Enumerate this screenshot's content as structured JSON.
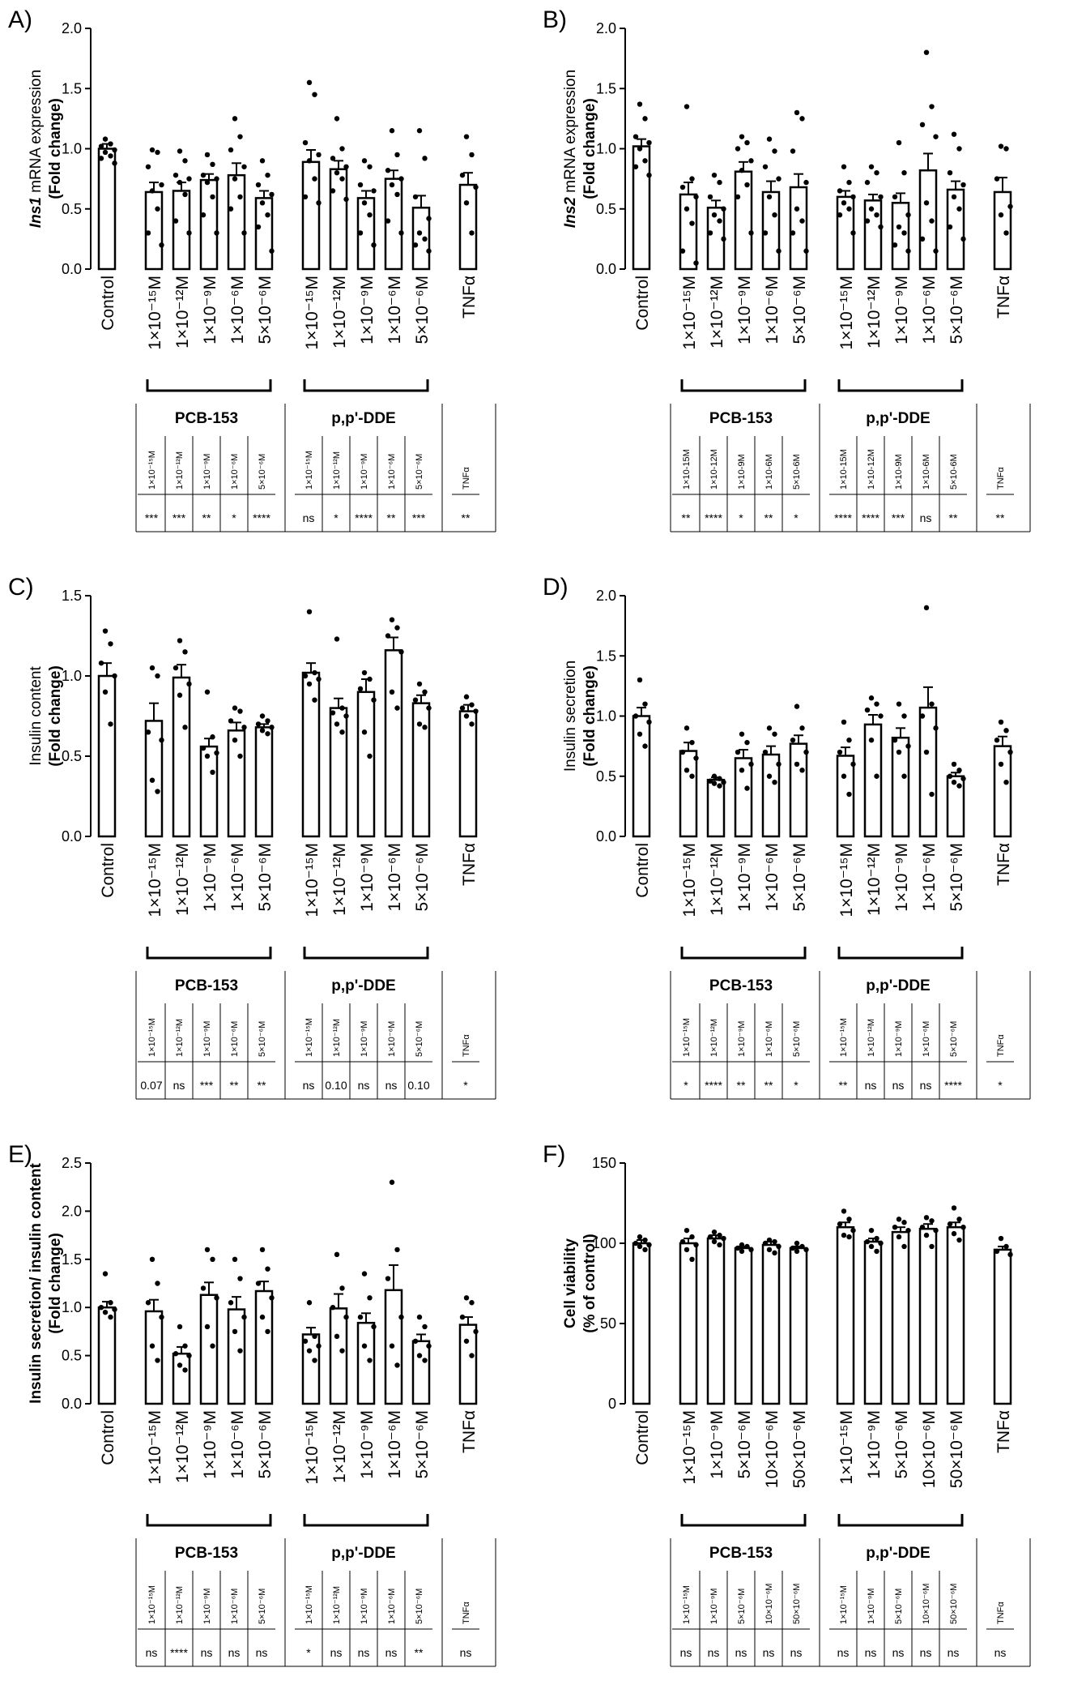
{
  "chart_data": [
    {
      "letter": "A)",
      "type": "bar",
      "ylabel_italic": "Ins1",
      "ylabel_rest": " mRNA expression",
      "ylabel2": "(Fold change)",
      "ylim": [
        0,
        2.0
      ],
      "yticks": [
        "0.0",
        "0.5",
        "1.0",
        "1.5",
        "2.0"
      ],
      "control_label": "Control",
      "treatment_labels": [
        "1×10⁻¹⁵M",
        "1×10⁻¹²M",
        "1×10⁻⁹M",
        "1×10⁻⁶M",
        "5×10⁻⁶M"
      ],
      "tnf_label": "TNFα",
      "groups": [
        "PCB-153",
        "p,p'-DDE"
      ],
      "values": [
        1.0,
        0.64,
        0.65,
        0.74,
        0.78,
        0.59,
        0.89,
        0.83,
        0.59,
        0.75,
        0.51,
        0.7
      ],
      "errors": [
        0.04,
        0.08,
        0.07,
        0.05,
        0.1,
        0.06,
        0.1,
        0.07,
        0.06,
        0.07,
        0.1,
        0.1
      ],
      "points": [
        [
          1.08,
          1.04,
          1.02,
          0.99,
          0.97,
          0.94,
          0.92,
          0.88
        ],
        [
          0.99,
          0.97,
          0.85,
          0.7,
          0.65,
          0.5,
          0.3,
          0.2
        ],
        [
          0.98,
          0.9,
          0.78,
          0.75,
          0.72,
          0.62,
          0.4,
          0.3
        ],
        [
          0.95,
          0.87,
          0.78,
          0.75,
          0.72,
          0.6,
          0.45,
          0.3
        ],
        [
          1.25,
          1.1,
          0.99,
          0.85,
          0.75,
          0.6,
          0.5,
          0.3
        ],
        [
          0.9,
          0.78,
          0.7,
          0.62,
          0.55,
          0.45,
          0.35,
          0.15
        ],
        [
          1.55,
          1.45,
          1.05,
          0.95,
          0.9,
          0.75,
          0.6,
          0.55
        ],
        [
          1.25,
          1.0,
          0.92,
          0.85,
          0.8,
          0.75,
          0.65,
          0.58
        ],
        [
          0.9,
          0.85,
          0.7,
          0.65,
          0.55,
          0.45,
          0.3,
          0.2
        ],
        [
          1.15,
          0.95,
          0.82,
          0.75,
          0.7,
          0.62,
          0.4,
          0.3
        ],
        [
          1.15,
          0.92,
          0.6,
          0.42,
          0.3,
          0.25,
          0.2,
          0.15
        ],
        [
          1.1,
          0.95,
          0.78,
          0.68,
          0.55,
          0.3
        ]
      ],
      "table": {
        "headers": [
          "1×10⁻¹⁵M",
          "1×10⁻¹²M",
          "1×10⁻⁹M",
          "1×10⁻⁶M",
          "5×10⁻⁶M",
          "1×10⁻¹⁵M",
          "1×10⁻¹²M",
          "1×10⁻⁹M",
          "1×10⁻⁶M",
          "5×10⁻⁶M",
          "TNFα"
        ],
        "sig": [
          "***",
          "***",
          "**",
          "*",
          "****",
          "ns",
          "*",
          "****",
          "**",
          "***",
          "**"
        ]
      }
    },
    {
      "letter": "B)",
      "type": "bar",
      "ylabel_italic": "Ins2",
      "ylabel_rest": " mRNA expression",
      "ylabel2": "(Fold change)",
      "ylim": [
        0,
        2.0
      ],
      "yticks": [
        "0.0",
        "0.5",
        "1.0",
        "1.5",
        "2.0"
      ],
      "control_label": "Control",
      "treatment_labels": [
        "1×10⁻¹⁵M",
        "1×10⁻¹²M",
        "1×10⁻⁹M",
        "1×10⁻⁶M",
        "5×10⁻⁶M"
      ],
      "tnf_label": "TNFα",
      "groups": [
        "PCB-153",
        "p,p'-DDE"
      ],
      "values": [
        1.02,
        0.62,
        0.51,
        0.81,
        0.64,
        0.68,
        0.6,
        0.57,
        0.55,
        0.82,
        0.66,
        0.64
      ],
      "errors": [
        0.06,
        0.1,
        0.06,
        0.08,
        0.09,
        0.11,
        0.05,
        0.05,
        0.08,
        0.14,
        0.07,
        0.12
      ],
      "points": [
        [
          1.37,
          1.25,
          1.1,
          1.05,
          1.0,
          0.9,
          0.85,
          0.78
        ],
        [
          1.35,
          0.75,
          0.68,
          0.6,
          0.5,
          0.38,
          0.15,
          0.05
        ],
        [
          0.78,
          0.72,
          0.6,
          0.5,
          0.45,
          0.4,
          0.3,
          0.25
        ],
        [
          1.1,
          1.05,
          1.0,
          0.9,
          0.82,
          0.7,
          0.6,
          0.3
        ],
        [
          1.08,
          0.98,
          0.85,
          0.75,
          0.6,
          0.45,
          0.3,
          0.15
        ],
        [
          1.3,
          1.25,
          0.98,
          0.72,
          0.5,
          0.4,
          0.3,
          0.15
        ],
        [
          0.85,
          0.72,
          0.65,
          0.6,
          0.55,
          0.5,
          0.45,
          0.3
        ],
        [
          0.85,
          0.8,
          0.72,
          0.6,
          0.5,
          0.45,
          0.4,
          0.35
        ],
        [
          1.05,
          0.8,
          0.6,
          0.45,
          0.35,
          0.3,
          0.2,
          0.15
        ],
        [
          1.8,
          1.35,
          1.2,
          1.1,
          0.55,
          0.4,
          0.25,
          0.15
        ],
        [
          1.12,
          1.0,
          0.8,
          0.7,
          0.6,
          0.5,
          0.35,
          0.25
        ],
        [
          1.02,
          1.0,
          0.75,
          0.52,
          0.45,
          0.3
        ]
      ],
      "table": {
        "headers": [
          "1×10-15M",
          "1×10-12M",
          "1×10-9M",
          "1×10-6M",
          "5×10-6M",
          "1×10-15M",
          "1×10-12M",
          "1×10-9M",
          "1×10-6M",
          "5×10-6M",
          "TNFα"
        ],
        "sig": [
          "**",
          "****",
          "*",
          "**",
          "*",
          "****",
          "****",
          "***",
          "ns",
          "**",
          "**"
        ]
      }
    },
    {
      "letter": "C)",
      "type": "bar",
      "ylabel_italic": "",
      "ylabel_rest": "Insulin content",
      "ylabel2": "(Fold change)",
      "ylim": [
        0,
        1.5
      ],
      "yticks": [
        "0.0",
        "0.5",
        "1.0",
        "1.5"
      ],
      "control_label": "Control",
      "treatment_labels": [
        "1×10⁻¹⁵M",
        "1×10⁻¹²M",
        "1×10⁻⁹M",
        "1×10⁻⁶M",
        "5×10⁻⁶M"
      ],
      "tnf_label": "TNFα",
      "groups": [
        "PCB-153",
        "p,p'-DDE"
      ],
      "values": [
        1.0,
        0.72,
        0.99,
        0.56,
        0.66,
        0.68,
        1.02,
        0.8,
        0.9,
        1.16,
        0.83,
        0.78
      ],
      "errors": [
        0.08,
        0.11,
        0.08,
        0.05,
        0.05,
        0.02,
        0.06,
        0.06,
        0.08,
        0.08,
        0.05,
        0.04
      ],
      "points": [
        [
          1.28,
          1.2,
          1.08,
          1.0,
          0.9,
          0.7
        ],
        [
          1.05,
          1.0,
          0.65,
          0.6,
          0.35,
          0.28
        ],
        [
          1.22,
          1.15,
          1.05,
          0.95,
          0.88,
          0.68
        ],
        [
          0.9,
          0.62,
          0.55,
          0.52,
          0.5,
          0.4
        ],
        [
          0.8,
          0.78,
          0.72,
          0.68,
          0.6,
          0.5
        ],
        [
          0.75,
          0.72,
          0.7,
          0.68,
          0.66,
          0.64
        ],
        [
          1.4,
          1.02,
          1.0,
          0.98,
          0.95,
          0.85
        ],
        [
          1.23,
          0.8,
          0.77,
          0.75,
          0.7,
          0.65
        ],
        [
          1.02,
          0.98,
          0.92,
          0.85,
          0.65,
          0.5
        ],
        [
          1.35,
          1.3,
          1.25,
          1.15,
          0.9,
          0.8
        ],
        [
          0.95,
          0.9,
          0.85,
          0.8,
          0.7,
          0.68
        ],
        [
          0.87,
          0.82,
          0.8,
          0.78,
          0.75,
          0.7
        ]
      ],
      "table": {
        "headers": [
          "1×10⁻¹⁵M",
          "1×10⁻¹²M",
          "1×10⁻⁹M",
          "1×10⁻⁶M",
          "5×10⁻⁶M",
          "1×10⁻¹⁵M",
          "1×10⁻¹²M",
          "1×10⁻⁹M",
          "1×10⁻⁶M",
          "5×10⁻⁶M",
          "TNFα"
        ],
        "sig": [
          "0.07",
          "ns",
          "***",
          "**",
          "**",
          "ns",
          "0.10",
          "ns",
          "ns",
          "0.10",
          "*"
        ]
      }
    },
    {
      "letter": "D)",
      "type": "bar",
      "ylabel_italic": "",
      "ylabel_rest": "Insulin secretion",
      "ylabel2": "(Fold change)",
      "ylim": [
        0,
        2.0
      ],
      "yticks": [
        "0.0",
        "0.5",
        "1.0",
        "1.5",
        "2.0"
      ],
      "control_label": "Control",
      "treatment_labels": [
        "1×10⁻¹⁵M",
        "1×10⁻¹²M",
        "1×10⁻⁹M",
        "1×10⁻⁶M",
        "5×10⁻⁶M"
      ],
      "tnf_label": "TNFα",
      "groups": [
        "PCB-153",
        "p,p'-DDE"
      ],
      "values": [
        1.0,
        0.71,
        0.47,
        0.65,
        0.68,
        0.77,
        0.67,
        0.93,
        0.82,
        1.07,
        0.5,
        0.75
      ],
      "errors": [
        0.07,
        0.07,
        0.02,
        0.07,
        0.07,
        0.07,
        0.07,
        0.08,
        0.08,
        0.17,
        0.03,
        0.08
      ],
      "points": [
        [
          1.3,
          1.1,
          1.0,
          0.95,
          0.85,
          0.75
        ],
        [
          0.9,
          0.78,
          0.7,
          0.65,
          0.55,
          0.5
        ],
        [
          0.5,
          0.48,
          0.46,
          0.45,
          0.44,
          0.42
        ],
        [
          0.85,
          0.78,
          0.7,
          0.6,
          0.55,
          0.4
        ],
        [
          0.9,
          0.85,
          0.7,
          0.6,
          0.5,
          0.45
        ],
        [
          1.08,
          0.9,
          0.8,
          0.7,
          0.6,
          0.55
        ],
        [
          0.95,
          0.8,
          0.7,
          0.6,
          0.5,
          0.35
        ],
        [
          1.15,
          1.1,
          1.05,
          1.0,
          0.8,
          0.5
        ],
        [
          1.1,
          1.0,
          0.8,
          0.75,
          0.7,
          0.5
        ],
        [
          1.9,
          1.1,
          1.0,
          0.9,
          0.7,
          0.35
        ],
        [
          0.6,
          0.55,
          0.5,
          0.48,
          0.45,
          0.42
        ],
        [
          0.95,
          0.88,
          0.8,
          0.7,
          0.6,
          0.45
        ]
      ],
      "table": {
        "headers": [
          "1×10⁻¹⁵M",
          "1×10⁻¹²M",
          "1×10⁻⁹M",
          "1×10⁻⁶M",
          "5×10⁻⁶M",
          "1×10⁻¹⁵M",
          "1×10⁻¹²M",
          "1×10⁻⁹M",
          "1×10⁻⁶M",
          "5×10⁻⁶M",
          "TNFα"
        ],
        "sig": [
          "*",
          "****",
          "**",
          "**",
          "*",
          "**",
          "ns",
          "ns",
          "ns",
          "****",
          "*"
        ]
      }
    },
    {
      "letter": "E)",
      "type": "bar",
      "ylabel_italic": "",
      "ylabel_rest": "Insulin secretion/ insulin content",
      "ylabel2": "(Fold change)",
      "ylim": [
        0,
        2.5
      ],
      "yticks": [
        "0.0",
        "0.5",
        "1.0",
        "1.5",
        "2.0",
        "2.5"
      ],
      "control_label": "Control",
      "treatment_labels": [
        "1×10⁻¹⁵M",
        "1×10⁻¹²M",
        "1×10⁻⁹M",
        "1×10⁻⁶M",
        "5×10⁻⁶M"
      ],
      "tnf_label": "TNFα",
      "groups": [
        "PCB-153",
        "p,p'-DDE"
      ],
      "values": [
        1.0,
        0.96,
        0.52,
        1.13,
        0.98,
        1.17,
        0.72,
        0.99,
        0.84,
        1.18,
        0.65,
        0.82
      ],
      "errors": [
        0.06,
        0.12,
        0.07,
        0.13,
        0.13,
        0.1,
        0.07,
        0.15,
        0.1,
        0.26,
        0.07,
        0.08
      ],
      "points": [
        [
          1.35,
          1.05,
          1.0,
          0.98,
          0.95,
          0.9
        ],
        [
          1.5,
          1.25,
          1.05,
          0.9,
          0.6,
          0.45
        ],
        [
          0.8,
          0.6,
          0.52,
          0.5,
          0.4,
          0.35
        ],
        [
          1.6,
          1.5,
          1.2,
          1.1,
          0.8,
          0.6
        ],
        [
          1.5,
          1.3,
          1.05,
          0.9,
          0.75,
          0.55
        ],
        [
          1.6,
          1.4,
          1.25,
          1.1,
          0.9,
          0.75
        ],
        [
          1.05,
          0.7,
          0.65,
          0.6,
          0.55,
          0.45
        ],
        [
          1.55,
          1.2,
          1.0,
          0.9,
          0.7,
          0.55
        ],
        [
          1.35,
          1.1,
          0.9,
          0.8,
          0.6,
          0.45
        ],
        [
          2.3,
          1.6,
          1.3,
          0.9,
          0.6,
          0.4
        ],
        [
          0.9,
          0.8,
          0.65,
          0.6,
          0.5,
          0.45
        ],
        [
          1.1,
          1.05,
          0.9,
          0.75,
          0.65,
          0.5
        ]
      ],
      "table": {
        "headers": [
          "1×10⁻¹⁵M",
          "1×10⁻¹²M",
          "1×10⁻⁹M",
          "1×10⁻⁶M",
          "5×10⁻⁶M",
          "1×10⁻¹⁵M",
          "1×10⁻¹²M",
          "1×10⁻⁹M",
          "1×10⁻⁶M",
          "5×10⁻⁶M",
          "TNFα"
        ],
        "sig": [
          "ns",
          "****",
          "ns",
          "ns",
          "ns",
          "*",
          "ns",
          "ns",
          "ns",
          "**",
          "ns"
        ]
      }
    },
    {
      "letter": "F)",
      "type": "bar",
      "ylabel_italic": "",
      "ylabel_rest": "Cell viability",
      "ylabel2": "(% of control)",
      "ylabel_bold": true,
      "ylim": [
        0,
        150
      ],
      "yticks": [
        "0",
        "50",
        "100",
        "150"
      ],
      "control_label": "Control",
      "treatment_labels": [
        "1×10⁻¹⁵M",
        "1×10⁻⁹M",
        "5×10⁻⁶M",
        "10×10⁻⁶M",
        "50×10⁻⁶M"
      ],
      "tnf_label": "TNFα",
      "groups": [
        "PCB-153",
        "p,p'-DDE"
      ],
      "values": [
        100,
        100,
        103,
        97,
        99,
        97,
        110,
        101,
        107,
        109,
        110,
        96
      ],
      "errors": [
        2,
        3,
        2,
        1,
        2,
        1,
        3,
        2,
        3,
        3,
        3,
        2
      ],
      "points": [
        [
          104,
          102,
          100,
          99,
          98,
          96
        ],
        [
          108,
          104,
          101,
          99,
          96,
          90
        ],
        [
          107,
          105,
          104,
          103,
          101,
          99
        ],
        [
          99,
          98,
          97,
          96,
          95
        ],
        [
          102,
          101,
          100,
          98,
          96,
          94
        ],
        [
          100,
          98,
          97,
          96,
          95
        ],
        [
          120,
          115,
          112,
          108,
          105,
          104
        ],
        [
          108,
          103,
          101,
          100,
          98,
          95
        ],
        [
          115,
          113,
          110,
          108,
          104,
          98
        ],
        [
          116,
          114,
          110,
          108,
          105,
          98
        ],
        [
          122,
          115,
          112,
          110,
          106,
          102
        ],
        [
          103,
          98,
          95,
          93
        ]
      ],
      "table": {
        "headers": [
          "1×10⁻¹⁵M",
          "1×10⁻⁹M",
          "5×10⁻⁶M",
          "10×10⁻⁶M",
          "50×10⁻⁶M",
          "1×10⁻¹⁵M",
          "1×10⁻⁹M",
          "5×10⁻⁶M",
          "10×10⁻⁶M",
          "50×10⁻⁶M",
          "TNFα"
        ],
        "sig": [
          "ns",
          "ns",
          "ns",
          "ns",
          "ns",
          "ns",
          "ns",
          "ns",
          "ns",
          "ns",
          "ns"
        ]
      }
    }
  ]
}
